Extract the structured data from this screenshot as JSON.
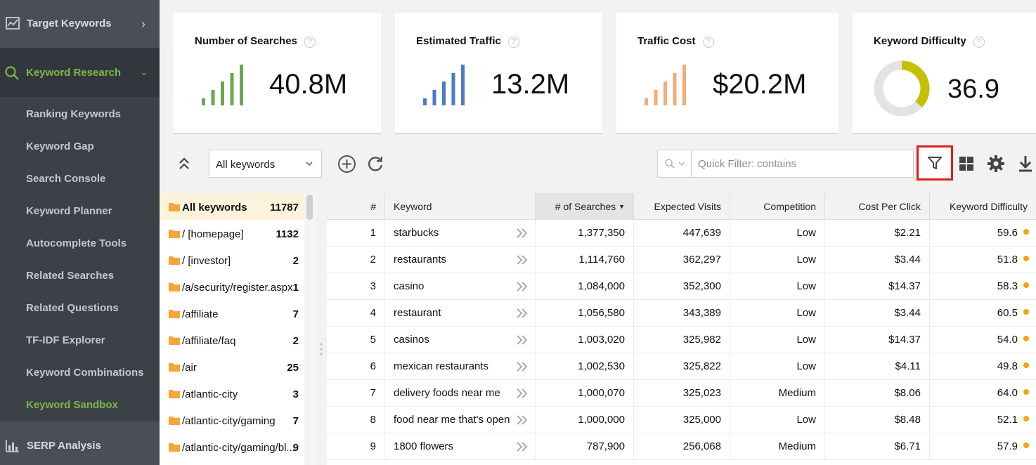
{
  "sidebar": {
    "top_item": "Target Keywords",
    "active_section": "Keyword Research",
    "items": [
      {
        "label": "Ranking Keywords"
      },
      {
        "label": "Keyword Gap"
      },
      {
        "label": "Search Console"
      },
      {
        "label": "Keyword Planner"
      },
      {
        "label": "Autocomplete Tools"
      },
      {
        "label": "Related Searches"
      },
      {
        "label": "Related Questions"
      },
      {
        "label": "TF-IDF Explorer"
      },
      {
        "label": "Keyword Combinations"
      },
      {
        "label": "Keyword Sandbox"
      }
    ],
    "bottom_item": "SERP Analysis"
  },
  "cards": [
    {
      "title": "Number of Searches",
      "value": "40.8M",
      "color": "#6aa84f"
    },
    {
      "title": "Estimated Traffic",
      "value": "13.2M",
      "color": "#4a7bc4"
    },
    {
      "title": "Traffic Cost",
      "value": "$20.2M",
      "color": "#f0ad78"
    },
    {
      "title": "Keyword Difficulty",
      "value": "36.9",
      "color": "#c3c000",
      "fraction": 0.369
    }
  ],
  "toolbar": {
    "filter_select": "All keywords",
    "quick_filter_placeholder": "Quick Filter: contains"
  },
  "tree": [
    {
      "name": "All keywords",
      "count": "11787"
    },
    {
      "name": "/ [homepage]",
      "count": "1132"
    },
    {
      "name": "/ [investor]",
      "count": "2"
    },
    {
      "name": "/a/security/register.aspx",
      "count": "1"
    },
    {
      "name": "/affiliate",
      "count": "7"
    },
    {
      "name": "/affiliate/faq",
      "count": "2"
    },
    {
      "name": "/air",
      "count": "25"
    },
    {
      "name": "/atlantic-city",
      "count": "3"
    },
    {
      "name": "/atlantic-city/gaming",
      "count": "7"
    },
    {
      "name": "/atlantic-city/gaming/bl...",
      "count": "9"
    }
  ],
  "table": {
    "columns": [
      "#",
      "Keyword",
      "# of Searches",
      "Expected Visits",
      "Competition",
      "Cost Per Click",
      "Keyword Difficulty"
    ],
    "rows": [
      {
        "n": "1",
        "keyword": "starbucks",
        "searches": "1,377,350",
        "visits": "447,639",
        "competition": "Low",
        "cpc": "$2.21",
        "difficulty": "59.6"
      },
      {
        "n": "2",
        "keyword": "restaurants",
        "searches": "1,114,760",
        "visits": "362,297",
        "competition": "Low",
        "cpc": "$3.44",
        "difficulty": "51.8"
      },
      {
        "n": "3",
        "keyword": "casino",
        "searches": "1,084,000",
        "visits": "352,300",
        "competition": "Low",
        "cpc": "$14.37",
        "difficulty": "58.3"
      },
      {
        "n": "4",
        "keyword": "restaurant",
        "searches": "1,056,580",
        "visits": "343,389",
        "competition": "Low",
        "cpc": "$3.44",
        "difficulty": "60.5"
      },
      {
        "n": "5",
        "keyword": "casinos",
        "searches": "1,003,020",
        "visits": "325,982",
        "competition": "Low",
        "cpc": "$14.37",
        "difficulty": "54.0"
      },
      {
        "n": "6",
        "keyword": "mexican restaurants",
        "searches": "1,002,530",
        "visits": "325,822",
        "competition": "Low",
        "cpc": "$4.11",
        "difficulty": "49.8"
      },
      {
        "n": "7",
        "keyword": "delivery foods near me",
        "searches": "1,000,070",
        "visits": "325,023",
        "competition": "Medium",
        "cpc": "$8.06",
        "difficulty": "64.0"
      },
      {
        "n": "8",
        "keyword": "food near me that's open",
        "searches": "1,000,000",
        "visits": "325,000",
        "competition": "Low",
        "cpc": "$8.48",
        "difficulty": "52.1"
      },
      {
        "n": "9",
        "keyword": "1800 flowers",
        "searches": "787,900",
        "visits": "256,068",
        "competition": "Medium",
        "cpc": "$6.71",
        "difficulty": "57.9"
      }
    ]
  }
}
